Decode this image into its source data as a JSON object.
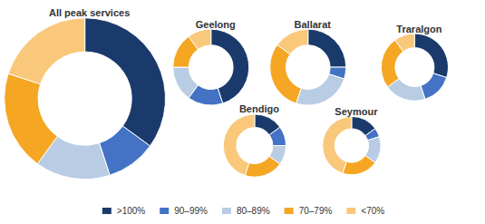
{
  "chart_data": [
    {
      "type": "pie",
      "title": "All peak services",
      "categories": [
        ">100%",
        "90–99%",
        "80–89%",
        "70–79%",
        "<70%"
      ],
      "values": [
        35,
        10,
        15,
        20,
        20
      ],
      "colors": [
        "#1a3a6b",
        "#4472c4",
        "#b8cce4",
        "#f5a623",
        "#f9c87a"
      ],
      "legend": "bottom"
    },
    {
      "type": "pie",
      "title": "Geelong",
      "categories": [
        ">100%",
        "90–99%",
        "80–89%",
        "70–79%",
        "<70%"
      ],
      "values": [
        45,
        15,
        15,
        15,
        10
      ],
      "colors": [
        "#1a3a6b",
        "#4472c4",
        "#b8cce4",
        "#f5a623",
        "#f9c87a"
      ],
      "legend": "bottom"
    },
    {
      "type": "pie",
      "title": "Ballarat",
      "categories": [
        ">100%",
        "90–99%",
        "80–89%",
        "70–79%",
        "<70%"
      ],
      "values": [
        25,
        5,
        25,
        30,
        15
      ],
      "colors": [
        "#1a3a6b",
        "#4472c4",
        "#b8cce4",
        "#f5a623",
        "#f9c87a"
      ],
      "legend": "bottom"
    },
    {
      "type": "pie",
      "title": "Traralgon",
      "categories": [
        ">100%",
        "90–99%",
        "80–89%",
        "70–79%",
        "<70%"
      ],
      "values": [
        30,
        15,
        20,
        25,
        10
      ],
      "colors": [
        "#1a3a6b",
        "#4472c4",
        "#b8cce4",
        "#f5a623",
        "#f9c87a"
      ],
      "legend": "bottom"
    },
    {
      "type": "pie",
      "title": "Bendigo",
      "categories": [
        ">100%",
        "90–99%",
        "80–89%",
        "70–79%",
        "<70%"
      ],
      "values": [
        15,
        10,
        10,
        20,
        45
      ],
      "colors": [
        "#1a3a6b",
        "#4472c4",
        "#b8cce4",
        "#f5a623",
        "#f9c87a"
      ],
      "legend": "bottom"
    },
    {
      "type": "pie",
      "title": "Seymour",
      "categories": [
        ">100%",
        "90–99%",
        "80–89%",
        "70–79%",
        "<70%"
      ],
      "values": [
        15,
        5,
        15,
        20,
        45
      ],
      "colors": [
        "#1a3a6b",
        "#4472c4",
        "#b8cce4",
        "#f5a623",
        "#f9c87a"
      ],
      "legend": "bottom"
    }
  ]
}
